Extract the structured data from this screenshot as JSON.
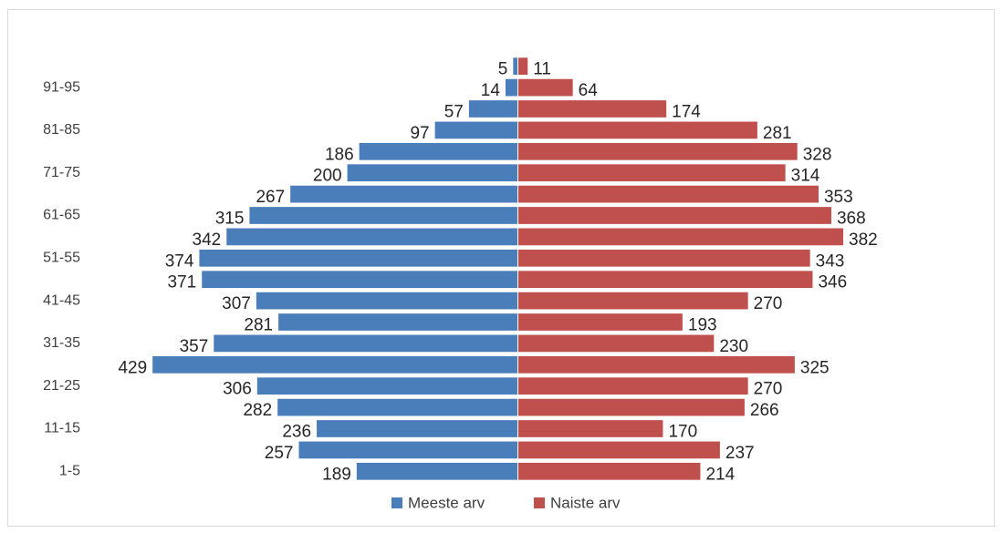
{
  "chart_data": {
    "type": "pyramid",
    "categories": [
      "1-5",
      null,
      "11-15",
      null,
      "21-25",
      null,
      "31-35",
      null,
      "41-45",
      null,
      "51-55",
      null,
      "61-65",
      null,
      "71-75",
      null,
      "81-85",
      null,
      "91-95",
      null
    ],
    "series": [
      {
        "name": "Meeste arv",
        "color": "#4a7ebb",
        "values": [
          189,
          257,
          236,
          282,
          306,
          429,
          357,
          281,
          307,
          371,
          374,
          342,
          315,
          267,
          200,
          186,
          97,
          57,
          14,
          5
        ]
      },
      {
        "name": "Naiste arv",
        "color": "#c0504d",
        "values": [
          214,
          237,
          170,
          266,
          270,
          325,
          230,
          193,
          270,
          346,
          343,
          382,
          368,
          353,
          314,
          328,
          281,
          174,
          64,
          11
        ]
      }
    ],
    "legend": "bottom"
  }
}
